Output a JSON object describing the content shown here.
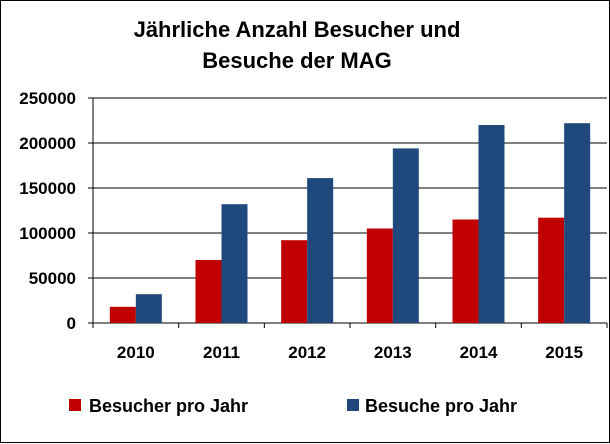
{
  "chart_data": {
    "type": "bar",
    "title_lines": [
      "Jährliche Anzahl Besucher und",
      "Besuche der MAG"
    ],
    "xlabel": "",
    "ylabel": "",
    "categories": [
      "2010",
      "2011",
      "2012",
      "2013",
      "2014",
      "2015"
    ],
    "series": [
      {
        "name": "Besucher pro Jahr",
        "color": "#C00000",
        "values": [
          18000,
          70000,
          92000,
          105000,
          115000,
          117000
        ]
      },
      {
        "name": "Besuche pro Jahr",
        "color": "#1F497D",
        "values": [
          32000,
          132000,
          161000,
          194000,
          220000,
          222000
        ]
      }
    ],
    "ylim": [
      0,
      250000
    ],
    "yticks": [
      "0",
      "50000",
      "100000",
      "150000",
      "200000",
      "250000"
    ],
    "grid": "horizontal",
    "legend_position": "bottom"
  }
}
